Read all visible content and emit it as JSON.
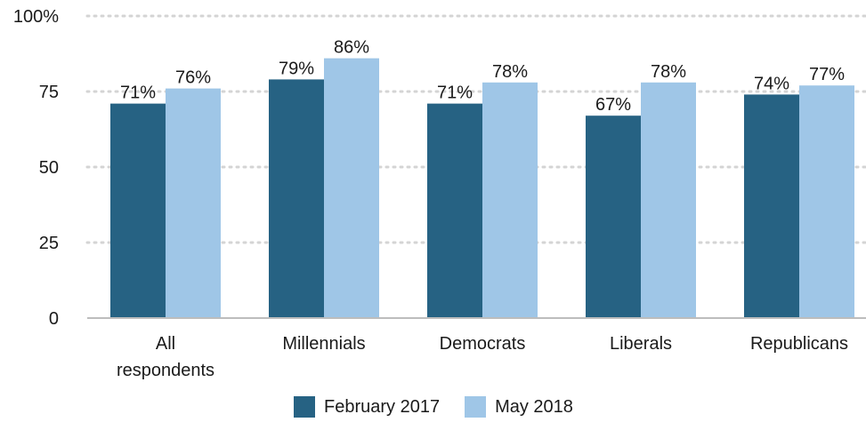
{
  "chart_data": {
    "type": "bar",
    "title": "",
    "xlabel": "",
    "ylabel": "",
    "ylim": [
      0,
      100
    ],
    "yticks": [
      "0",
      "25",
      "50",
      "75",
      "100%"
    ],
    "y_tick_values": [
      0,
      25,
      50,
      75,
      100
    ],
    "grid": true,
    "legend_placement": "bottom",
    "categories": [
      [
        "All",
        "respondents"
      ],
      [
        "Millennials"
      ],
      [
        "Democrats"
      ],
      [
        "Liberals"
      ],
      [
        "Republicans"
      ]
    ],
    "series": [
      {
        "name": "February 2017",
        "color": "#266283",
        "values": [
          71,
          79,
          71,
          67,
          74
        ],
        "labels": [
          "71%",
          "79%",
          "71%",
          "67%",
          "74%"
        ]
      },
      {
        "name": "May 2018",
        "color": "#9fc6e7",
        "values": [
          76,
          86,
          78,
          78,
          77
        ],
        "labels": [
          "76%",
          "86%",
          "78%",
          "78%",
          "77%"
        ]
      }
    ]
  }
}
